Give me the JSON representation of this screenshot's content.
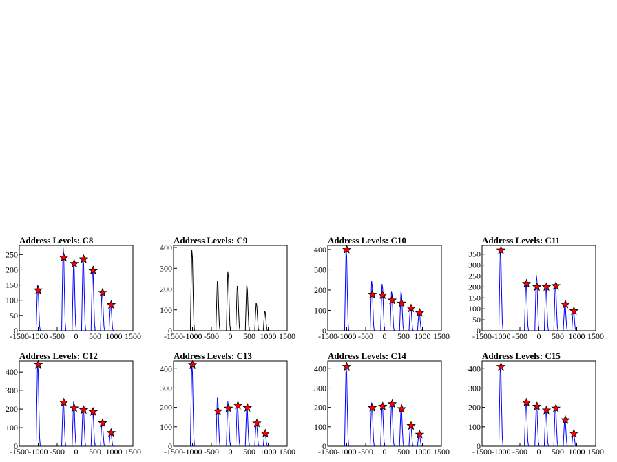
{
  "chart_data": [
    {
      "type": "histogram",
      "title": "Address Levels: C8",
      "x_ticks": [
        -1500,
        -1000,
        -500,
        0,
        500,
        1000,
        1500
      ],
      "y_ticks": [
        0,
        50,
        100,
        150,
        200,
        250
      ],
      "xlim": [
        -1500,
        1500
      ],
      "ylim": [
        0,
        280
      ],
      "peaks": [
        {
          "x": -1000,
          "y": 150,
          "marker": 133
        },
        {
          "x": -325,
          "y": 275,
          "marker": 240
        },
        {
          "x": -50,
          "y": 225,
          "marker": 220
        },
        {
          "x": 200,
          "y": 240,
          "marker": 235
        },
        {
          "x": 450,
          "y": 205,
          "marker": 198
        },
        {
          "x": 700,
          "y": 130,
          "marker": 125
        },
        {
          "x": 925,
          "y": 90,
          "marker": 85
        }
      ],
      "line_color": "#0000ff",
      "marker_color": "#ff0000"
    },
    {
      "type": "histogram",
      "title": "Address Levels: C9",
      "x_ticks": [
        -1500,
        -1000,
        -500,
        0,
        500,
        1000,
        1500
      ],
      "y_ticks": [
        0,
        100,
        200,
        300,
        400
      ],
      "xlim": [
        -1500,
        1500
      ],
      "ylim": [
        0,
        410
      ],
      "peaks": [
        {
          "x": -1000,
          "y": 390
        },
        {
          "x": -325,
          "y": 240
        },
        {
          "x": -50,
          "y": 285
        },
        {
          "x": 200,
          "y": 215
        },
        {
          "x": 450,
          "y": 220
        },
        {
          "x": 700,
          "y": 135
        },
        {
          "x": 925,
          "y": 95
        }
      ],
      "line_color": "#000000"
    },
    {
      "type": "histogram",
      "title": "Address Levels: C10",
      "x_ticks": [
        -1500,
        -1000,
        -500,
        0,
        500,
        1000,
        1500
      ],
      "y_ticks": [
        0,
        100,
        200,
        300,
        400
      ],
      "xlim": [
        -1500,
        1500
      ],
      "ylim": [
        0,
        420
      ],
      "peaks": [
        {
          "x": -1000,
          "y": 405,
          "marker": 400
        },
        {
          "x": -325,
          "y": 245,
          "marker": 178
        },
        {
          "x": -50,
          "y": 230,
          "marker": 175
        },
        {
          "x": 200,
          "y": 195,
          "marker": 150
        },
        {
          "x": 450,
          "y": 195,
          "marker": 135
        },
        {
          "x": 700,
          "y": 125,
          "marker": 110
        },
        {
          "x": 925,
          "y": 95,
          "marker": 88
        }
      ],
      "line_color": "#0000ff",
      "marker_color": "#ff0000"
    },
    {
      "type": "histogram",
      "title": "Address Levels: C11",
      "x_ticks": [
        -1500,
        -1000,
        -500,
        0,
        500,
        1000,
        1500
      ],
      "y_ticks": [
        0,
        50,
        100,
        150,
        200,
        250,
        300,
        350
      ],
      "xlim": [
        -1500,
        1500
      ],
      "ylim": [
        0,
        390
      ],
      "peaks": [
        {
          "x": -1000,
          "y": 372,
          "marker": 368
        },
        {
          "x": -325,
          "y": 222,
          "marker": 215
        },
        {
          "x": -50,
          "y": 255,
          "marker": 200
        },
        {
          "x": 200,
          "y": 210,
          "marker": 200
        },
        {
          "x": 450,
          "y": 210,
          "marker": 205
        },
        {
          "x": 700,
          "y": 125,
          "marker": 120
        },
        {
          "x": 925,
          "y": 95,
          "marker": 90
        }
      ],
      "line_color": "#0000ff",
      "marker_color": "#ff0000"
    },
    {
      "type": "histogram",
      "title": "Address Levels: C12",
      "x_ticks": [
        -1500,
        -1000,
        -500,
        0,
        500,
        1000,
        1500
      ],
      "y_ticks": [
        0,
        100,
        200,
        300,
        400
      ],
      "xlim": [
        -1500,
        1500
      ],
      "ylim": [
        0,
        460
      ],
      "peaks": [
        {
          "x": -1000,
          "y": 450,
          "marker": 440
        },
        {
          "x": -325,
          "y": 245,
          "marker": 235
        },
        {
          "x": -50,
          "y": 240,
          "marker": 205
        },
        {
          "x": 200,
          "y": 220,
          "marker": 195
        },
        {
          "x": 450,
          "y": 205,
          "marker": 185
        },
        {
          "x": 700,
          "y": 135,
          "marker": 125
        },
        {
          "x": 925,
          "y": 80,
          "marker": 72
        }
      ],
      "line_color": "#0000ff",
      "marker_color": "#ff0000"
    },
    {
      "type": "histogram",
      "title": "Address Levels: C13",
      "x_ticks": [
        -1500,
        -1000,
        -500,
        0,
        500,
        1000,
        1500
      ],
      "y_ticks": [
        0,
        100,
        200,
        300,
        400
      ],
      "xlim": [
        -1500,
        1500
      ],
      "ylim": [
        0,
        440
      ],
      "peaks": [
        {
          "x": -1000,
          "y": 425,
          "marker": 420
        },
        {
          "x": -325,
          "y": 250,
          "marker": 180
        },
        {
          "x": -50,
          "y": 230,
          "marker": 195
        },
        {
          "x": 200,
          "y": 215,
          "marker": 210
        },
        {
          "x": 450,
          "y": 205,
          "marker": 198
        },
        {
          "x": 700,
          "y": 125,
          "marker": 118
        },
        {
          "x": 925,
          "y": 75,
          "marker": 65
        }
      ],
      "line_color": "#0000ff",
      "marker_color": "#ff0000"
    },
    {
      "type": "histogram",
      "title": "Address Levels: C14",
      "x_ticks": [
        -1500,
        -1000,
        -500,
        0,
        500,
        1000,
        1500
      ],
      "y_ticks": [
        0,
        100,
        200,
        300,
        400
      ],
      "xlim": [
        -1500,
        1500
      ],
      "ylim": [
        0,
        440
      ],
      "peaks": [
        {
          "x": -1000,
          "y": 418,
          "marker": 410
        },
        {
          "x": -325,
          "y": 225,
          "marker": 198
        },
        {
          "x": -50,
          "y": 215,
          "marker": 205
        },
        {
          "x": 200,
          "y": 225,
          "marker": 218
        },
        {
          "x": 450,
          "y": 200,
          "marker": 192
        },
        {
          "x": 700,
          "y": 115,
          "marker": 105
        },
        {
          "x": 925,
          "y": 70,
          "marker": 60
        }
      ],
      "line_color": "#0000ff",
      "marker_color": "#ff0000"
    },
    {
      "type": "histogram",
      "title": "Address Levels: C15",
      "x_ticks": [
        -1500,
        -1000,
        -500,
        0,
        500,
        1000,
        1500
      ],
      "y_ticks": [
        0,
        100,
        200,
        300,
        400
      ],
      "xlim": [
        -1500,
        1500
      ],
      "ylim": [
        0,
        440
      ],
      "peaks": [
        {
          "x": -1000,
          "y": 420,
          "marker": 410
        },
        {
          "x": -325,
          "y": 235,
          "marker": 225
        },
        {
          "x": -50,
          "y": 215,
          "marker": 205
        },
        {
          "x": 200,
          "y": 195,
          "marker": 185
        },
        {
          "x": 450,
          "y": 205,
          "marker": 195
        },
        {
          "x": 700,
          "y": 150,
          "marker": 135
        },
        {
          "x": 925,
          "y": 75,
          "marker": 65
        }
      ],
      "line_color": "#0000ff",
      "marker_color": "#ff0000"
    }
  ]
}
